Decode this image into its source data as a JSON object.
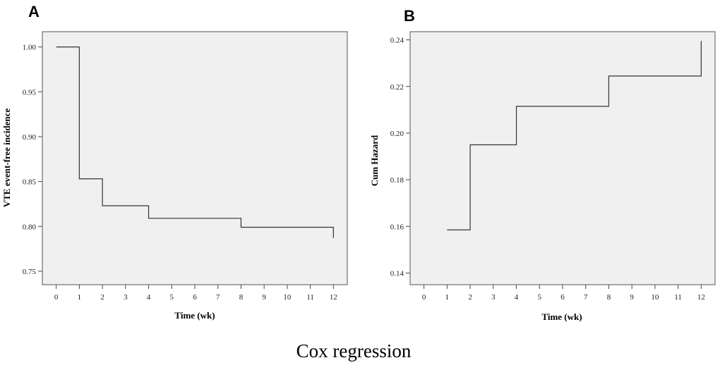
{
  "caption": "Cox regression",
  "chart_data": [
    {
      "panel": "A",
      "type": "line",
      "step": true,
      "xlabel": "Time (wk)",
      "ylabel": "VTE event-free incidence",
      "xticks": [
        "0",
        "1",
        "2",
        "3",
        "4",
        "5",
        "6",
        "7",
        "8",
        "9",
        "10",
        "11",
        "12"
      ],
      "yticks": [
        "0.75",
        "0.80",
        "0.85",
        "0.90",
        "0.95",
        "1.00"
      ],
      "xlim": [
        -0.6,
        12.6
      ],
      "ylim": [
        0.735,
        1.017
      ],
      "x": [
        0,
        1,
        2,
        4,
        8,
        12
      ],
      "y": [
        1.0,
        0.853,
        0.823,
        0.809,
        0.799,
        0.787
      ],
      "grid": false,
      "background": "#f0f0f0"
    },
    {
      "panel": "B",
      "type": "line",
      "step": true,
      "xlabel": "Time (wk)",
      "ylabel": "Cum Hazard",
      "xticks": [
        "0",
        "1",
        "2",
        "3",
        "4",
        "5",
        "6",
        "7",
        "8",
        "9",
        "10",
        "11",
        "12"
      ],
      "yticks": [
        "0.14",
        "0.16",
        "0.18",
        "0.20",
        "0.22",
        "0.24"
      ],
      "xlim": [
        -0.6,
        12.6
      ],
      "ylim": [
        0.135,
        0.2435
      ],
      "x": [
        1,
        2,
        4,
        8,
        12
      ],
      "y": [
        0.1585,
        0.195,
        0.2115,
        0.2245,
        0.2395
      ],
      "grid": false,
      "background": "#f0f0f0"
    }
  ]
}
